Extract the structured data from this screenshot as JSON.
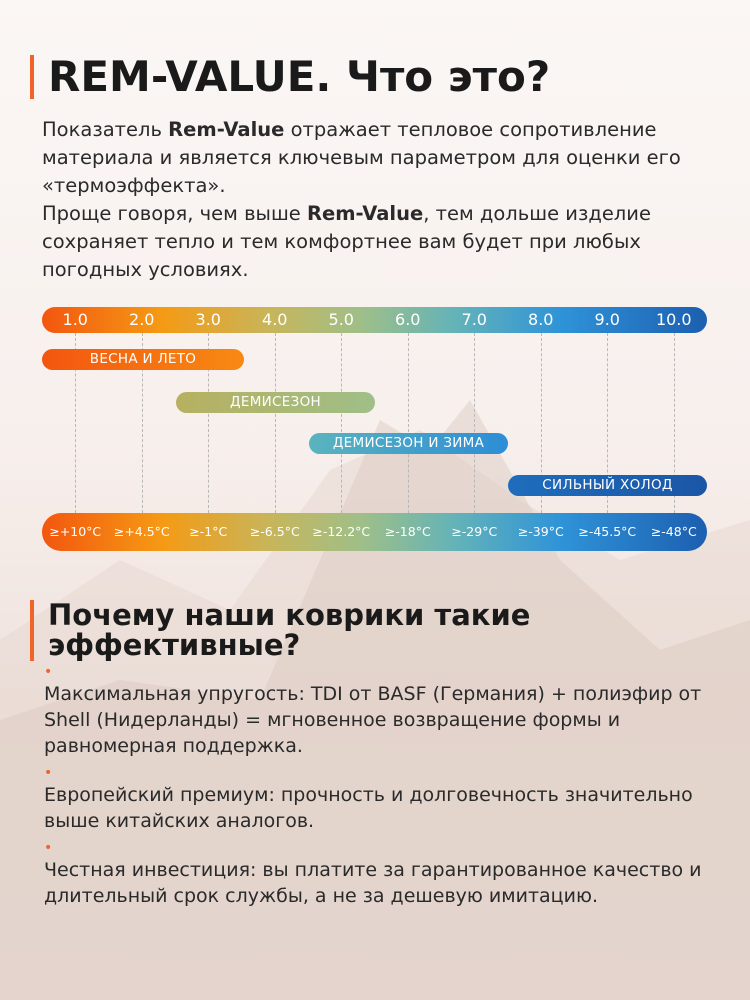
{
  "section1": {
    "title": "REM-VALUE. Что это?",
    "intro_p1_prefix": "Показатель ",
    "intro_p1_bold": "Rem-Value",
    "intro_p1_suffix": " отражает тепловое сопротивление материала и является ключевым параметром для оценки его «термоэффекта».",
    "intro_p2_prefix": "Проще говоря, чем выше ",
    "intro_p2_bold": "Rem-Value",
    "intro_p2_suffix": ", тем дольше изделие сохраняет тепло и тем комфортнее вам будет при любых погодных условиях."
  },
  "scale": {
    "values": [
      "1.0",
      "2.0",
      "3.0",
      "4.0",
      "5.0",
      "6.0",
      "7.0",
      "8.0",
      "9.0",
      "10.0"
    ],
    "temps": [
      "≥+10°C",
      "≥+4.5°C",
      "≥-1°C",
      "≥-6.5°C",
      "≥-12.2°C",
      "≥-18°C",
      "≥-29°C",
      "≥-39°C",
      "≥-45.5°C",
      "≥-48°C"
    ],
    "seasons": [
      "ВЕСНА И ЛЕТО",
      "ДЕМИСЕЗОН",
      "ДЕМИСЕЗОН И ЗИМА",
      "СИЛЬНЫЙ ХОЛОД"
    ],
    "colors": {
      "warm": "#f3560f",
      "mid": "#9fbf88",
      "cool": "#2d8dd6",
      "cold": "#1b56a5"
    }
  },
  "section2": {
    "title": "Почему наши коврики такие эффективные?",
    "bullet_symbol": "•",
    "items": [
      "Максимальная упругость: TDI от BASF (Германия) + полиэфир от Shell (Нидерланды) = мгновенное возвращение формы и равномерная поддержка.",
      "Европейский премиум: прочность и долговечность значительно выше китайских аналогов.",
      "Честная инвестиция: вы платите за гарантированное качество и длительный срок службы, а не за дешевую имитацию."
    ]
  },
  "accent_color": "#f0642a"
}
